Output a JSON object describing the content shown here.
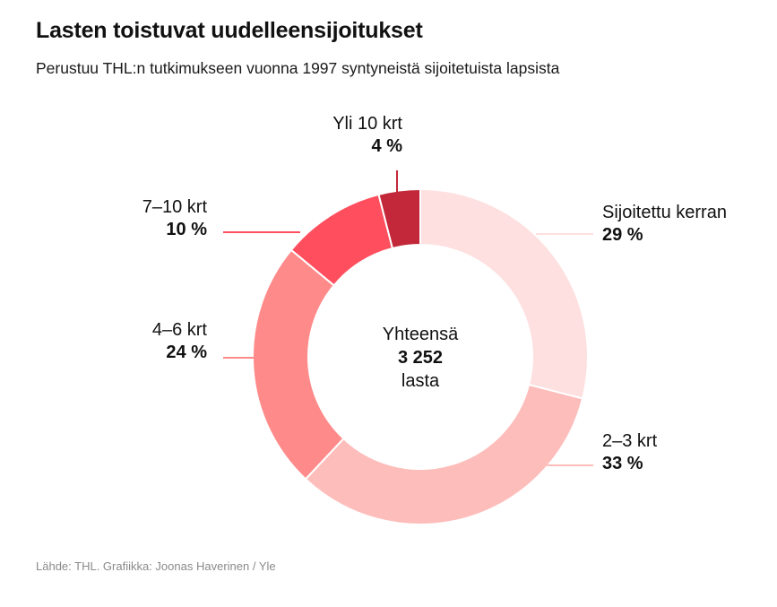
{
  "header": {
    "title": "Lasten toistuvat uudelleensijoitukset",
    "subtitle": "Perustuu THL:n tutkimukseen vuonna 1997 syntyneistä sijoitetuista lapsista"
  },
  "footer": {
    "source": "Lähde: THL. Grafiikka: Joonas Haverinen / Yle"
  },
  "chart_data": {
    "type": "pie",
    "donut": true,
    "title": "Lasten toistuvat uudelleensijoitukset",
    "center_label": {
      "line1": "Yhteensä",
      "total": "3 252",
      "line3": "lasta"
    },
    "categories": [
      "Sijoitettu kerran",
      "2–3 krt",
      "4–6 krt",
      "7–10 krt",
      "Yli 10 krt"
    ],
    "values": [
      29,
      33,
      24,
      10,
      4
    ],
    "value_labels": [
      "29 %",
      "33 %",
      "24 %",
      "10 %",
      "4 %"
    ],
    "colors": [
      "#fde0df",
      "#fdbdbb",
      "#ff8a8a",
      "#ff4e5e",
      "#c2283a"
    ],
    "start": "top",
    "direction": "clockwise"
  }
}
